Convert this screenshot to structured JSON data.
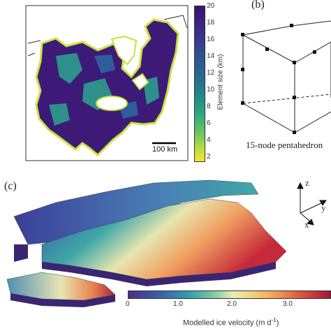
{
  "panel_a": {
    "scale_bar_label": "100 km",
    "colorbar": {
      "label": "Element size (km)",
      "ticks": [
        "20",
        "18",
        "16",
        "14",
        "12",
        "10",
        "8",
        "6",
        "4",
        "2"
      ]
    }
  },
  "panel_b": {
    "label": "(b)",
    "caption": "15-node pentahedron"
  },
  "panel_c": {
    "label": "(c)",
    "axes": {
      "z": "z",
      "y": "y",
      "x": "x"
    },
    "colorbar": {
      "ticks": [
        "0",
        "1.0",
        "2.0",
        "3.0"
      ],
      "label": "Modelled ice velocity (m d",
      "label_sup": "-1",
      "label_end": ")"
    }
  }
}
